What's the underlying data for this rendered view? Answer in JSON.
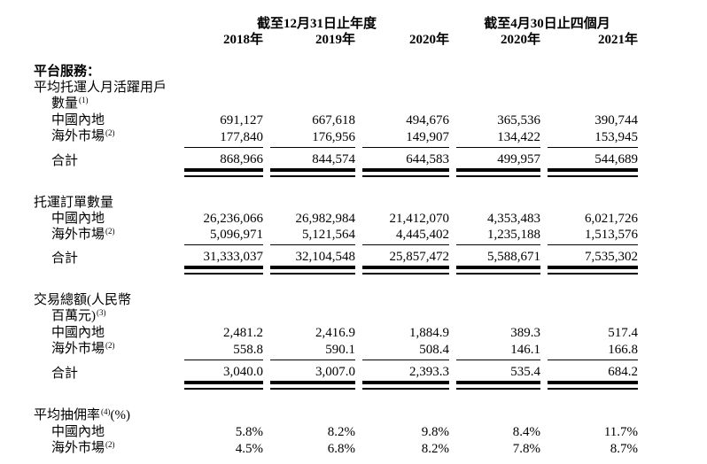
{
  "colors": {
    "background": "#ffffff",
    "text": "#000000",
    "rule": "#000000"
  },
  "table": {
    "period_headers": [
      {
        "label": "截至12月31日止年度"
      },
      {
        "label": "截至4月30日止四個月"
      }
    ],
    "year_headers": [
      "2018年",
      "2019年",
      "2020年",
      "2020年",
      "2021年"
    ],
    "rows": [
      {
        "type": "spacer",
        "size": "sm"
      },
      {
        "type": "header",
        "label": "平台服務：",
        "bold": true
      },
      {
        "type": "header",
        "label": "平均托運人月活躍用戶"
      },
      {
        "type": "header",
        "label": "數量",
        "sup": "(1)",
        "indent": 1
      },
      {
        "type": "data",
        "label": "中國內地",
        "indent": 1,
        "values": [
          "691,127",
          "667,618",
          "494,676",
          "365,536",
          "390,744"
        ]
      },
      {
        "type": "data",
        "label": "海外市場",
        "sup": "(2)",
        "indent": 1,
        "rule_below": true,
        "values": [
          "177,840",
          "176,956",
          "149,907",
          "134,422",
          "153,945"
        ]
      },
      {
        "type": "total",
        "label": "合計",
        "indent": 1,
        "values": [
          "868,966",
          "844,574",
          "644,583",
          "499,957",
          "544,689"
        ]
      },
      {
        "type": "spacer",
        "size": "md"
      },
      {
        "type": "header",
        "label": "托運訂單數量"
      },
      {
        "type": "data",
        "label": "中國內地",
        "indent": 1,
        "values": [
          "26,236,066",
          "26,982,984",
          "21,412,070",
          "4,353,483",
          "6,021,726"
        ]
      },
      {
        "type": "data",
        "label": "海外市場",
        "sup": "(2)",
        "indent": 1,
        "rule_below": true,
        "values": [
          "5,096,971",
          "5,121,564",
          "4,445,402",
          "1,235,188",
          "1,513,576"
        ]
      },
      {
        "type": "total",
        "label": "合計",
        "indent": 1,
        "values": [
          "31,333,037",
          "32,104,548",
          "25,857,472",
          "5,588,671",
          "7,535,302"
        ]
      },
      {
        "type": "spacer",
        "size": "md"
      },
      {
        "type": "header",
        "label": "交易總額(人民幣"
      },
      {
        "type": "header",
        "label": "百萬元)",
        "sup": "(3)",
        "indent": 1
      },
      {
        "type": "data",
        "label": "中國內地",
        "indent": 1,
        "values": [
          "2,481.2",
          "2,416.9",
          "1,884.9",
          "389.3",
          "517.4"
        ]
      },
      {
        "type": "data",
        "label": "海外市場",
        "sup": "(2)",
        "indent": 1,
        "rule_below": true,
        "values": [
          "558.8",
          "590.1",
          "508.4",
          "146.1",
          "166.8"
        ]
      },
      {
        "type": "total",
        "label": "合計",
        "indent": 1,
        "values": [
          "3,040.0",
          "3,007.0",
          "2,393.3",
          "535.4",
          "684.2"
        ]
      },
      {
        "type": "spacer",
        "size": "md"
      },
      {
        "type": "header",
        "label": "平均抽佣率",
        "sup": "(4)",
        "suffix": "(%)"
      },
      {
        "type": "data",
        "label": "中國內地",
        "indent": 1,
        "values": [
          "5.8%",
          "8.2%",
          "9.8%",
          "8.4%",
          "11.7%"
        ]
      },
      {
        "type": "data",
        "label": "海外市場",
        "sup": "(2)",
        "indent": 1,
        "values": [
          "4.5%",
          "6.8%",
          "8.2%",
          "7.8%",
          "8.7%"
        ]
      }
    ]
  }
}
